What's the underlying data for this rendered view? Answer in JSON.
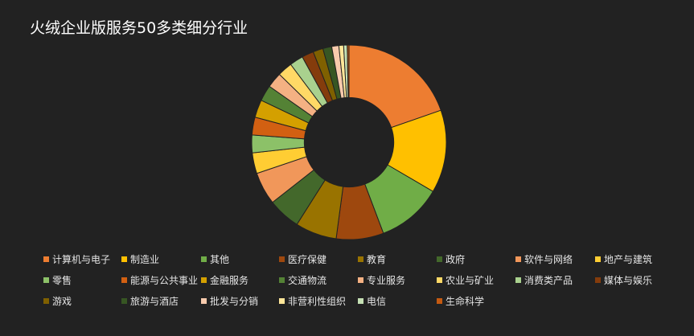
{
  "page": {
    "background": "#222222"
  },
  "chart_data": {
    "type": "pie",
    "title": "火绒企业版服务50多类细分行业",
    "legend_position": "bottom",
    "inner_radius_ratio": 0.46,
    "series": [
      {
        "name": "计算机与电子",
        "value": 20.0,
        "color": "#ed7d31"
      },
      {
        "name": "制造业",
        "value": 14.0,
        "color": "#ffc000"
      },
      {
        "name": "其他",
        "value": 11.0,
        "color": "#70ad47"
      },
      {
        "name": "医疗保健",
        "value": 8.0,
        "color": "#9e480e"
      },
      {
        "name": "教育",
        "value": 7.0,
        "color": "#997300"
      },
      {
        "name": "政府",
        "value": 5.5,
        "color": "#43682b"
      },
      {
        "name": "软件与网络",
        "value": 5.5,
        "color": "#f1975a"
      },
      {
        "name": "地产与建筑",
        "value": 3.5,
        "color": "#ffcd33"
      },
      {
        "name": "零售",
        "value": 3.0,
        "color": "#8cc168"
      },
      {
        "name": "能源与公共事业",
        "value": 3.0,
        "color": "#d26012"
      },
      {
        "name": "金融服务",
        "value": 3.0,
        "color": "#d4a000"
      },
      {
        "name": "交通物流",
        "value": 2.7,
        "color": "#548235"
      },
      {
        "name": "专业服务",
        "value": 2.6,
        "color": "#f4b183"
      },
      {
        "name": "农业与矿业",
        "value": 2.5,
        "color": "#ffd966"
      },
      {
        "name": "消费类产品",
        "value": 2.3,
        "color": "#a9d18e"
      },
      {
        "name": "媒体与娱乐",
        "value": 2.0,
        "color": "#843c0c"
      },
      {
        "name": "游戏",
        "value": 1.7,
        "color": "#7f6000"
      },
      {
        "name": "旅游与酒店",
        "value": 1.5,
        "color": "#375623"
      },
      {
        "name": "批发与分销",
        "value": 1.2,
        "color": "#f8cbad"
      },
      {
        "name": "非营利性组织",
        "value": 0.8,
        "color": "#ffe699"
      },
      {
        "name": "电信",
        "value": 0.6,
        "color": "#c5e0b4"
      },
      {
        "name": "生命科学",
        "value": 0.3,
        "color": "#c55a11"
      }
    ]
  }
}
